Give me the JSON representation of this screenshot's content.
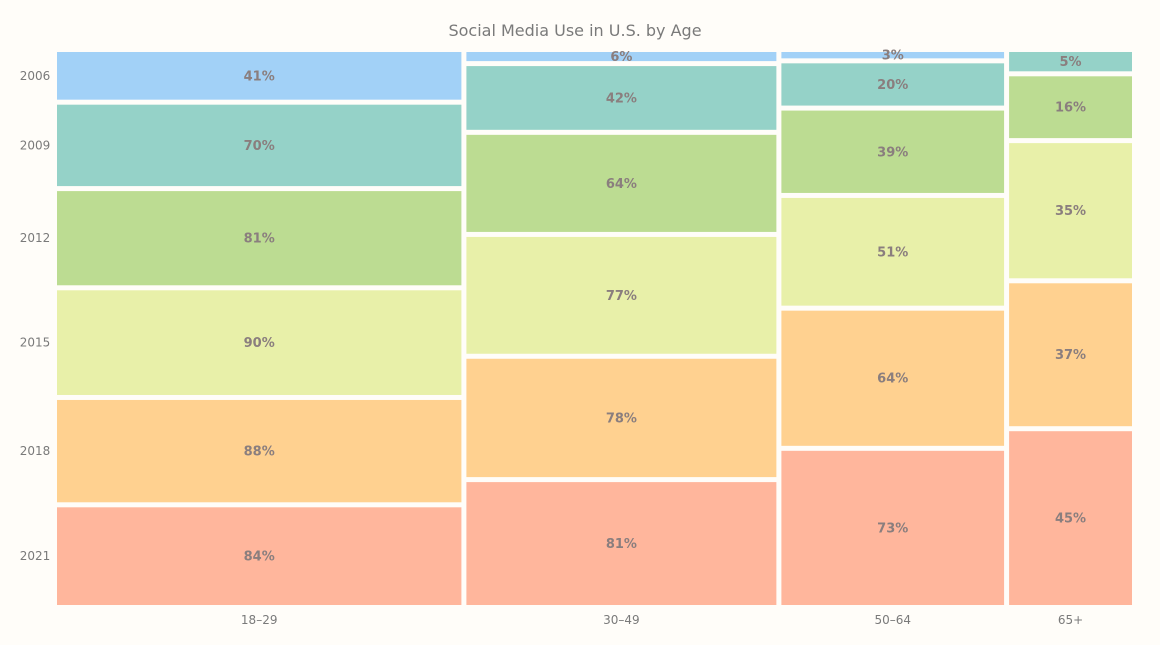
{
  "chart_data": {
    "type": "mosaic",
    "title": "Social Media Use in U.S. by Age",
    "categories": [
      "18–29",
      "30–49",
      "50–64",
      "65+"
    ],
    "years": [
      "2006",
      "2009",
      "2012",
      "2015",
      "2018",
      "2021"
    ],
    "series": [
      {
        "name": "2006",
        "values": [
          41,
          6,
          3,
          0
        ]
      },
      {
        "name": "2009",
        "values": [
          70,
          42,
          20,
          5
        ]
      },
      {
        "name": "2012",
        "values": [
          81,
          64,
          39,
          16
        ]
      },
      {
        "name": "2015",
        "values": [
          90,
          77,
          51,
          35
        ]
      },
      {
        "name": "2018",
        "values": [
          88,
          78,
          64,
          37
        ]
      },
      {
        "name": "2021",
        "values": [
          84,
          81,
          73,
          45
        ]
      }
    ],
    "colors": [
      "#a2d1f7",
      "#95d2c8",
      "#bcdc92",
      "#e8f0a9",
      "#ffd190",
      "#ffb69c"
    ],
    "grid": false,
    "legend": "none"
  }
}
